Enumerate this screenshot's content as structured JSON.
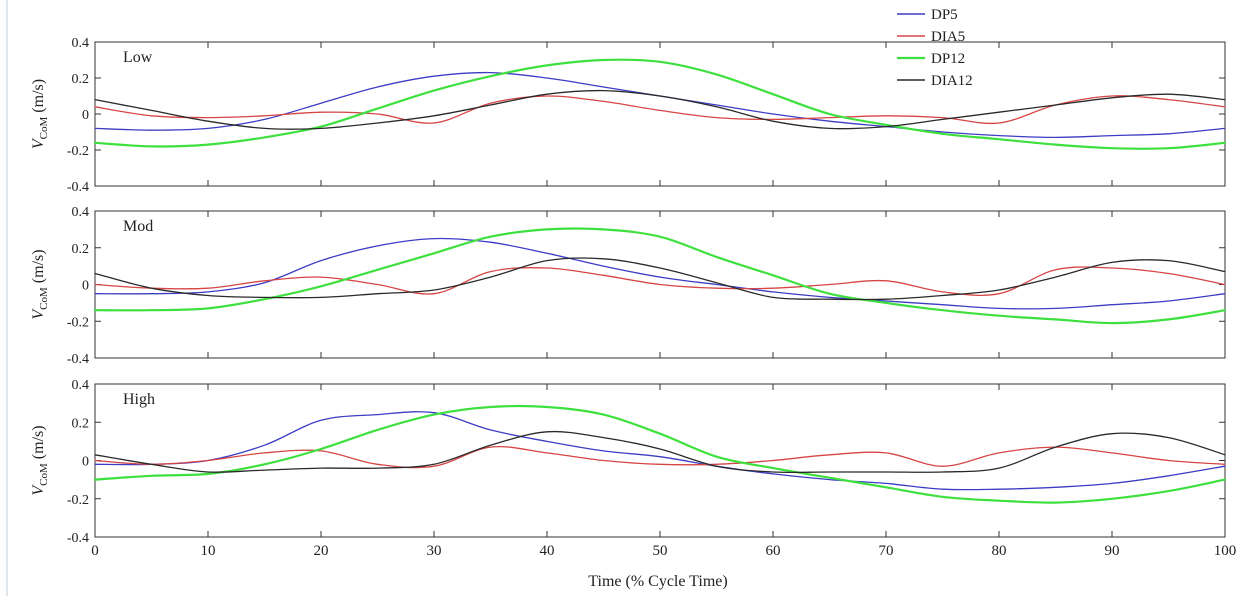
{
  "figure": {
    "xlabel": "Time (% Cycle Time)",
    "ylabel_main": "V",
    "ylabel_sub": "CoM",
    "ylabel_unit": "(m/s)"
  },
  "legend": [
    {
      "name": "DP5",
      "color": "#3c3cc4"
    },
    {
      "name": "DIA5",
      "color": "#d64545"
    },
    {
      "name": "DP12",
      "color": "#3ee03e"
    },
    {
      "name": "DIA12",
      "color": "#2a2a2a"
    }
  ],
  "chart_data": [
    {
      "type": "line",
      "title": "Low",
      "xlim": [
        0,
        100
      ],
      "ylim": [
        -0.4,
        0.4
      ],
      "xticks": [
        0,
        10,
        20,
        30,
        40,
        50,
        60,
        70,
        80,
        90,
        100
      ],
      "yticks": [
        -0.4,
        -0.2,
        0,
        0.2,
        0.4
      ],
      "x": [
        0,
        5,
        10,
        15,
        20,
        25,
        30,
        35,
        40,
        45,
        50,
        55,
        60,
        65,
        70,
        75,
        80,
        85,
        90,
        95,
        100
      ],
      "series": [
        {
          "name": "DP5",
          "color": "#3c3cc4",
          "values": [
            -0.08,
            -0.09,
            -0.08,
            -0.03,
            0.06,
            0.15,
            0.21,
            0.23,
            0.2,
            0.15,
            0.1,
            0.05,
            0.0,
            -0.04,
            -0.07,
            -0.1,
            -0.12,
            -0.13,
            -0.12,
            -0.11,
            -0.08
          ]
        },
        {
          "name": "DIA5",
          "color": "#d64545",
          "values": [
            0.04,
            -0.01,
            -0.02,
            -0.01,
            0.01,
            0.0,
            -0.05,
            0.06,
            0.1,
            0.07,
            0.02,
            -0.02,
            -0.03,
            -0.02,
            -0.01,
            -0.02,
            -0.05,
            0.05,
            0.1,
            0.08,
            0.04
          ]
        },
        {
          "name": "DP12",
          "color": "#3ee03e",
          "values": [
            -0.16,
            -0.18,
            -0.17,
            -0.13,
            -0.07,
            0.03,
            0.13,
            0.21,
            0.27,
            0.3,
            0.29,
            0.22,
            0.11,
            0.0,
            -0.06,
            -0.11,
            -0.14,
            -0.17,
            -0.19,
            -0.19,
            -0.16
          ]
        },
        {
          "name": "DIA12",
          "color": "#2a2a2a",
          "values": [
            0.08,
            0.02,
            -0.04,
            -0.08,
            -0.08,
            -0.05,
            -0.01,
            0.05,
            0.11,
            0.13,
            0.1,
            0.04,
            -0.04,
            -0.08,
            -0.07,
            -0.03,
            0.01,
            0.05,
            0.09,
            0.11,
            0.08
          ]
        }
      ]
    },
    {
      "type": "line",
      "title": "Mod",
      "xlim": [
        0,
        100
      ],
      "ylim": [
        -0.4,
        0.4
      ],
      "xticks": [
        0,
        10,
        20,
        30,
        40,
        50,
        60,
        70,
        80,
        90,
        100
      ],
      "yticks": [
        -0.4,
        -0.2,
        0,
        0.2,
        0.4
      ],
      "x": [
        0,
        5,
        10,
        15,
        20,
        25,
        30,
        35,
        40,
        45,
        50,
        55,
        60,
        65,
        70,
        75,
        80,
        85,
        90,
        95,
        100
      ],
      "series": [
        {
          "name": "DP5",
          "color": "#3c3cc4",
          "values": [
            -0.05,
            -0.05,
            -0.04,
            0.01,
            0.13,
            0.21,
            0.25,
            0.23,
            0.17,
            0.1,
            0.04,
            0.0,
            -0.04,
            -0.07,
            -0.09,
            -0.11,
            -0.13,
            -0.13,
            -0.11,
            -0.09,
            -0.05
          ]
        },
        {
          "name": "DIA5",
          "color": "#d64545",
          "values": [
            0.0,
            -0.02,
            -0.02,
            0.02,
            0.04,
            0.0,
            -0.05,
            0.07,
            0.09,
            0.05,
            0.0,
            -0.02,
            -0.02,
            0.0,
            0.02,
            -0.04,
            -0.05,
            0.08,
            0.09,
            0.06,
            0.0
          ]
        },
        {
          "name": "DP12",
          "color": "#3ee03e",
          "values": [
            -0.14,
            -0.14,
            -0.13,
            -0.08,
            -0.01,
            0.08,
            0.17,
            0.26,
            0.3,
            0.3,
            0.26,
            0.15,
            0.05,
            -0.05,
            -0.1,
            -0.14,
            -0.17,
            -0.19,
            -0.21,
            -0.19,
            -0.14
          ]
        },
        {
          "name": "DIA12",
          "color": "#2a2a2a",
          "values": [
            0.06,
            -0.02,
            -0.06,
            -0.07,
            -0.07,
            -0.05,
            -0.03,
            0.04,
            0.13,
            0.14,
            0.09,
            0.01,
            -0.07,
            -0.08,
            -0.08,
            -0.06,
            -0.03,
            0.04,
            0.12,
            0.13,
            0.07
          ]
        }
      ]
    },
    {
      "type": "line",
      "title": "High",
      "xlim": [
        0,
        100
      ],
      "ylim": [
        -0.4,
        0.4
      ],
      "xticks": [
        0,
        10,
        20,
        30,
        40,
        50,
        60,
        70,
        80,
        90,
        100
      ],
      "yticks": [
        -0.4,
        -0.2,
        0,
        0.2,
        0.4
      ],
      "x": [
        0,
        5,
        10,
        15,
        20,
        25,
        30,
        35,
        40,
        45,
        50,
        55,
        60,
        65,
        70,
        75,
        80,
        85,
        90,
        95,
        100
      ],
      "series": [
        {
          "name": "DP5",
          "color": "#3c3cc4",
          "values": [
            -0.02,
            -0.02,
            0.0,
            0.08,
            0.21,
            0.24,
            0.25,
            0.16,
            0.1,
            0.05,
            0.02,
            -0.03,
            -0.07,
            -0.1,
            -0.12,
            -0.15,
            -0.15,
            -0.14,
            -0.12,
            -0.08,
            -0.03
          ]
        },
        {
          "name": "DIA5",
          "color": "#d64545",
          "values": [
            0.0,
            -0.02,
            0.0,
            0.04,
            0.05,
            -0.02,
            -0.03,
            0.07,
            0.04,
            0.0,
            -0.02,
            -0.02,
            0.0,
            0.03,
            0.04,
            -0.03,
            0.04,
            0.07,
            0.04,
            0.0,
            -0.02
          ]
        },
        {
          "name": "DP12",
          "color": "#3ee03e",
          "values": [
            -0.1,
            -0.08,
            -0.07,
            -0.02,
            0.06,
            0.16,
            0.24,
            0.28,
            0.28,
            0.24,
            0.14,
            0.02,
            -0.04,
            -0.09,
            -0.14,
            -0.19,
            -0.21,
            -0.22,
            -0.2,
            -0.16,
            -0.1
          ]
        },
        {
          "name": "DIA12",
          "color": "#2a2a2a",
          "values": [
            0.03,
            -0.02,
            -0.06,
            -0.05,
            -0.04,
            -0.04,
            -0.02,
            0.08,
            0.15,
            0.12,
            0.06,
            -0.03,
            -0.06,
            -0.06,
            -0.06,
            -0.06,
            -0.04,
            0.07,
            0.14,
            0.12,
            0.03
          ]
        }
      ]
    }
  ]
}
